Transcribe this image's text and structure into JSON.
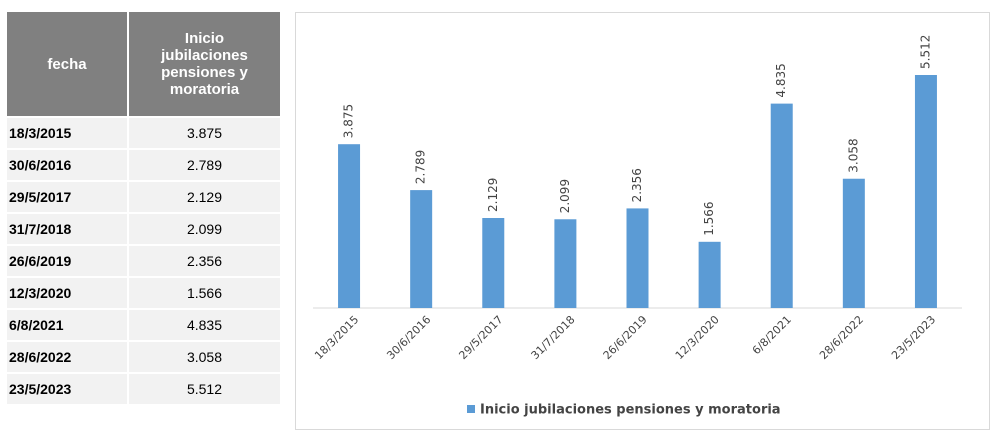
{
  "table": {
    "header": [
      "fecha",
      "Inicio jubilaciones pensiones y moratoria"
    ],
    "rows": [
      [
        "18/3/2015",
        "3.875"
      ],
      [
        "30/6/2016",
        "2.789"
      ],
      [
        "29/5/2017",
        "2.129"
      ],
      [
        "31/7/2018",
        "2.099"
      ],
      [
        "26/6/2019",
        "2.356"
      ],
      [
        "12/3/2020",
        "1.566"
      ],
      [
        "6/8/2021",
        "4.835"
      ],
      [
        "28/6/2022",
        "3.058"
      ],
      [
        "23/5/2023",
        "5.512"
      ]
    ]
  },
  "chart_data": {
    "type": "bar",
    "categories": [
      "18/3/2015",
      "30/6/2016",
      "29/5/2017",
      "31/7/2018",
      "26/6/2019",
      "12/3/2020",
      "6/8/2021",
      "28/6/2022",
      "23/5/2023"
    ],
    "series": [
      {
        "name": "Inicio jubilaciones pensiones y moratoria",
        "color": "#5b9bd5",
        "values": [
          3875,
          2789,
          2129,
          2099,
          2356,
          1566,
          4835,
          3058,
          5512
        ],
        "value_labels": [
          "3.875",
          "2.789",
          "2.129",
          "2.099",
          "2.356",
          "1.566",
          "4.835",
          "3.058",
          "5.512"
        ]
      }
    ],
    "legend": "bottom"
  }
}
